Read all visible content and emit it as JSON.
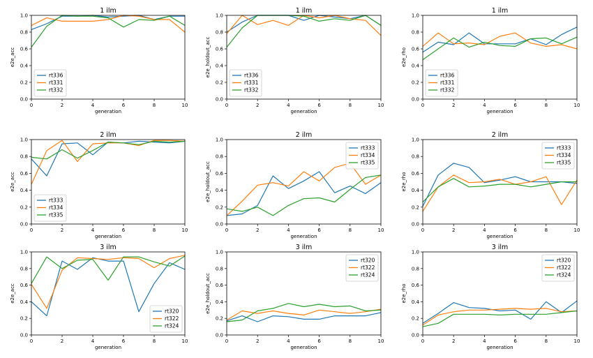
{
  "colors": {
    "c1": "#1f77b4",
    "c2": "#ff7f0e",
    "c3": "#2ca02c"
  },
  "chart_data": [
    {
      "type": "line",
      "title": "1 ilm",
      "xlabel": "generation",
      "ylabel": "e2e_acc",
      "xlim": [
        0,
        10
      ],
      "ylim": [
        0,
        1
      ],
      "xticks": [
        "0",
        "2",
        "4",
        "6",
        "8",
        "10"
      ],
      "yticks": [
        "0.0",
        "0.2",
        "0.4",
        "0.6",
        "0.8",
        "1.0"
      ],
      "legend": "lower-left",
      "x": [
        0,
        1,
        2,
        3,
        4,
        5,
        6,
        7,
        8,
        9,
        10
      ],
      "series": [
        {
          "name": "rt336",
          "values": [
            0.83,
            0.9,
            0.99,
            0.99,
            1.0,
            0.98,
            0.99,
            1.0,
            0.95,
            0.99,
            0.99
          ]
        },
        {
          "name": "rt331",
          "values": [
            0.88,
            0.97,
            0.93,
            0.93,
            0.93,
            0.95,
            1.0,
            0.99,
            0.95,
            0.95,
            0.8
          ]
        },
        {
          "name": "rt332",
          "values": [
            0.62,
            0.87,
            1.0,
            0.99,
            0.99,
            0.97,
            0.86,
            0.95,
            0.94,
            0.99,
            0.88
          ]
        }
      ]
    },
    {
      "type": "line",
      "title": "1 ilm",
      "xlabel": "generation",
      "ylabel": "e2e_holdout_acc",
      "xlim": [
        0,
        10
      ],
      "ylim": [
        0,
        1
      ],
      "xticks": [
        "0",
        "2",
        "4",
        "6",
        "8",
        "10"
      ],
      "yticks": [
        "0.0",
        "0.2",
        "0.4",
        "0.6",
        "0.8",
        "1.0"
      ],
      "legend": "lower-left",
      "x": [
        0,
        1,
        2,
        3,
        4,
        5,
        6,
        7,
        8,
        9,
        10
      ],
      "series": [
        {
          "name": "rt336",
          "values": [
            0.8,
            0.92,
            1.0,
            1.0,
            1.0,
            0.94,
            1.0,
            0.98,
            0.96,
            1.0,
            0.88
          ]
        },
        {
          "name": "rt331",
          "values": [
            0.78,
            1.0,
            0.89,
            0.94,
            0.88,
            1.0,
            0.97,
            1.0,
            0.96,
            0.94,
            0.76
          ]
        },
        {
          "name": "rt332",
          "values": [
            0.62,
            0.85,
            1.0,
            1.0,
            1.0,
            0.99,
            0.93,
            0.96,
            0.94,
            1.0,
            0.88
          ]
        }
      ]
    },
    {
      "type": "line",
      "title": "1 ilm",
      "xlabel": "generation",
      "ylabel": "e2e_rho",
      "xlim": [
        0,
        10
      ],
      "ylim": [
        0,
        1
      ],
      "xticks": [
        "0",
        "2",
        "4",
        "6",
        "8",
        "10"
      ],
      "yticks": [
        "0.0",
        "0.2",
        "0.4",
        "0.6",
        "0.8",
        "1.0"
      ],
      "legend": "lower-left",
      "x": [
        0,
        1,
        2,
        3,
        4,
        5,
        6,
        7,
        8,
        9,
        10
      ],
      "series": [
        {
          "name": "rt336",
          "values": [
            0.56,
            0.68,
            0.65,
            0.79,
            0.66,
            0.66,
            0.66,
            0.72,
            0.65,
            0.77,
            0.86
          ]
        },
        {
          "name": "rt331",
          "values": [
            0.63,
            0.79,
            0.66,
            0.67,
            0.65,
            0.75,
            0.79,
            0.67,
            0.63,
            0.65,
            0.6
          ]
        },
        {
          "name": "rt332",
          "values": [
            0.47,
            0.6,
            0.73,
            0.62,
            0.68,
            0.64,
            0.63,
            0.72,
            0.73,
            0.66,
            0.74
          ]
        }
      ]
    },
    {
      "type": "line",
      "title": "2 ilm",
      "xlabel": "generation",
      "ylabel": "e2e_acc",
      "xlim": [
        0,
        10
      ],
      "ylim": [
        0,
        1
      ],
      "xticks": [
        "0",
        "2",
        "4",
        "6",
        "8",
        "10"
      ],
      "yticks": [
        "0.0",
        "0.2",
        "0.4",
        "0.6",
        "0.8",
        "1.0"
      ],
      "legend": "lower-left",
      "x": [
        0,
        1,
        2,
        3,
        4,
        5,
        6,
        7,
        8,
        9,
        10
      ],
      "series": [
        {
          "name": "rt333",
          "values": [
            0.77,
            0.57,
            0.95,
            0.96,
            0.82,
            0.97,
            0.96,
            0.98,
            0.97,
            0.96,
            0.98
          ]
        },
        {
          "name": "rt334",
          "values": [
            0.47,
            0.87,
            0.99,
            0.74,
            0.95,
            0.96,
            0.96,
            0.93,
            0.99,
            0.99,
            0.98
          ]
        },
        {
          "name": "rt335",
          "values": [
            0.79,
            0.77,
            0.88,
            0.78,
            0.87,
            0.97,
            0.96,
            0.94,
            0.98,
            0.97,
            0.98
          ]
        }
      ]
    },
    {
      "type": "line",
      "title": "2 ilm",
      "xlabel": "generation",
      "ylabel": "e2e_holdout_acc",
      "xlim": [
        0,
        10
      ],
      "ylim": [
        0,
        1
      ],
      "xticks": [
        "0",
        "2",
        "4",
        "6",
        "8",
        "10"
      ],
      "yticks": [
        "0.0",
        "0.2",
        "0.4",
        "0.6",
        "0.8",
        "1.0"
      ],
      "legend": "upper-right",
      "x": [
        0,
        1,
        2,
        3,
        4,
        5,
        6,
        7,
        8,
        9,
        10
      ],
      "series": [
        {
          "name": "rt333",
          "values": [
            0.1,
            0.12,
            0.22,
            0.57,
            0.42,
            0.51,
            0.62,
            0.37,
            0.45,
            0.36,
            0.49
          ]
        },
        {
          "name": "rt334",
          "values": [
            0.1,
            0.27,
            0.46,
            0.49,
            0.45,
            0.62,
            0.51,
            0.67,
            0.72,
            0.47,
            0.58
          ]
        },
        {
          "name": "rt335",
          "values": [
            0.18,
            0.15,
            0.2,
            0.1,
            0.22,
            0.3,
            0.31,
            0.26,
            0.41,
            0.55,
            0.58
          ]
        }
      ]
    },
    {
      "type": "line",
      "title": "2 ilm",
      "xlabel": "generation",
      "ylabel": "e2e_rho",
      "xlim": [
        0,
        10
      ],
      "ylim": [
        0,
        1
      ],
      "xticks": [
        "0",
        "2",
        "4",
        "6",
        "8",
        "10"
      ],
      "yticks": [
        "0.0",
        "0.2",
        "0.4",
        "0.6",
        "0.8",
        "1.0"
      ],
      "legend": "upper-right",
      "x": [
        0,
        1,
        2,
        3,
        4,
        5,
        6,
        7,
        8,
        9,
        10
      ],
      "series": [
        {
          "name": "rt333",
          "values": [
            0.21,
            0.58,
            0.72,
            0.67,
            0.49,
            0.52,
            0.56,
            0.5,
            0.5,
            0.5,
            0.48
          ]
        },
        {
          "name": "rt334",
          "values": [
            0.15,
            0.44,
            0.58,
            0.49,
            0.5,
            0.53,
            0.47,
            0.5,
            0.56,
            0.23,
            0.52
          ]
        },
        {
          "name": "rt335",
          "values": [
            0.26,
            0.44,
            0.54,
            0.44,
            0.45,
            0.47,
            0.47,
            0.44,
            0.47,
            0.5,
            0.5
          ]
        }
      ]
    },
    {
      "type": "line",
      "title": "3 ilm",
      "xlabel": "generation",
      "ylabel": "e2e_acc",
      "xlim": [
        0,
        10
      ],
      "ylim": [
        0,
        1
      ],
      "xticks": [
        "0",
        "2",
        "4",
        "6",
        "8",
        "10"
      ],
      "yticks": [
        "0.0",
        "0.2",
        "0.4",
        "0.6",
        "0.8",
        "1.0"
      ],
      "legend": "lower-right",
      "x": [
        0,
        1,
        2,
        3,
        4,
        5,
        6,
        7,
        8,
        9,
        10
      ],
      "series": [
        {
          "name": "rt320",
          "values": [
            0.4,
            0.23,
            0.89,
            0.79,
            0.93,
            0.89,
            0.89,
            0.28,
            0.62,
            0.87,
            0.79
          ]
        },
        {
          "name": "rt322",
          "values": [
            0.61,
            0.32,
            0.78,
            0.93,
            0.92,
            0.91,
            0.93,
            0.92,
            0.81,
            0.92,
            0.96
          ]
        },
        {
          "name": "rt324",
          "values": [
            0.62,
            0.94,
            0.8,
            0.9,
            0.91,
            0.66,
            0.94,
            0.94,
            0.88,
            0.83,
            0.95
          ]
        }
      ]
    },
    {
      "type": "line",
      "title": "3 ilm",
      "xlabel": "generation",
      "ylabel": "e2e_holdout_acc",
      "xlim": [
        0,
        10
      ],
      "ylim": [
        0,
        1
      ],
      "xticks": [
        "0",
        "2",
        "4",
        "6",
        "8",
        "10"
      ],
      "yticks": [
        "0.0",
        "0.2",
        "0.4",
        "0.6",
        "0.8",
        "1.0"
      ],
      "legend": "upper-right",
      "x": [
        0,
        1,
        2,
        3,
        4,
        5,
        6,
        7,
        8,
        9,
        10
      ],
      "series": [
        {
          "name": "rt320",
          "values": [
            0.17,
            0.23,
            0.16,
            0.23,
            0.22,
            0.19,
            0.19,
            0.23,
            0.23,
            0.23,
            0.27
          ]
        },
        {
          "name": "rt322",
          "values": [
            0.18,
            0.29,
            0.26,
            0.29,
            0.26,
            0.24,
            0.3,
            0.28,
            0.26,
            0.28,
            0.31
          ]
        },
        {
          "name": "rt324",
          "values": [
            0.16,
            0.18,
            0.29,
            0.32,
            0.38,
            0.34,
            0.37,
            0.34,
            0.35,
            0.29,
            0.3
          ]
        }
      ]
    },
    {
      "type": "line",
      "title": "3 ilm",
      "xlabel": "generation",
      "ylabel": "e2e_rho",
      "xlim": [
        0,
        10
      ],
      "ylim": [
        0,
        1
      ],
      "xticks": [
        "0",
        "2",
        "4",
        "6",
        "8",
        "10"
      ],
      "yticks": [
        "0.0",
        "0.2",
        "0.4",
        "0.6",
        "0.8",
        "1.0"
      ],
      "legend": "upper-right",
      "x": [
        0,
        1,
        2,
        3,
        4,
        5,
        6,
        7,
        8,
        9,
        10
      ],
      "series": [
        {
          "name": "rt320",
          "values": [
            0.14,
            0.26,
            0.39,
            0.33,
            0.32,
            0.29,
            0.3,
            0.19,
            0.4,
            0.27,
            0.41
          ]
        },
        {
          "name": "rt322",
          "values": [
            0.12,
            0.24,
            0.28,
            0.3,
            0.3,
            0.31,
            0.32,
            0.31,
            0.32,
            0.28,
            0.29
          ]
        },
        {
          "name": "rt324",
          "values": [
            0.1,
            0.14,
            0.25,
            0.25,
            0.25,
            0.24,
            0.25,
            0.25,
            0.25,
            0.27,
            0.29
          ]
        }
      ]
    }
  ]
}
